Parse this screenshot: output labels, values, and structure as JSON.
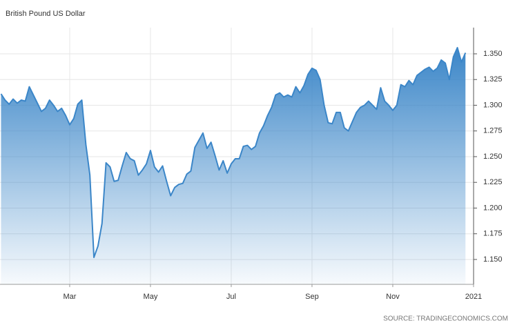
{
  "chart_data": {
    "type": "area",
    "title": "British Pound US Dollar",
    "source": "SOURCE: TRADINGECONOMICS.COM",
    "categories": [
      null,
      null,
      null,
      null,
      null,
      null,
      null,
      null,
      null,
      null,
      null,
      null,
      null,
      null,
      null,
      null,
      null,
      "Mar",
      null,
      null,
      null,
      null,
      null,
      null,
      null,
      null,
      null,
      null,
      null,
      null,
      null,
      null,
      null,
      null,
      null,
      null,
      null,
      "May",
      null,
      null,
      null,
      null,
      null,
      null,
      null,
      null,
      null,
      null,
      null,
      null,
      null,
      null,
      null,
      null,
      null,
      null,
      null,
      "Jul",
      null,
      null,
      null,
      null,
      null,
      null,
      null,
      null,
      null,
      null,
      null,
      null,
      null,
      null,
      null,
      null,
      null,
      null,
      null,
      "Sep",
      null,
      null,
      null,
      null,
      null,
      null,
      null,
      null,
      null,
      null,
      null,
      null,
      null,
      null,
      null,
      null,
      null,
      null,
      null,
      "Nov",
      null,
      null,
      null,
      null,
      null,
      null,
      null,
      null,
      null,
      null,
      null,
      null,
      null,
      null,
      null,
      null,
      null,
      null,
      null,
      "2021"
    ],
    "values": [
      1.311,
      1.305,
      1.301,
      1.306,
      1.302,
      1.305,
      1.304,
      1.318,
      1.31,
      1.302,
      1.294,
      1.297,
      1.305,
      1.3,
      1.294,
      1.297,
      1.29,
      1.281,
      1.287,
      1.301,
      1.305,
      1.262,
      1.232,
      1.152,
      1.163,
      1.185,
      1.244,
      1.24,
      1.226,
      1.227,
      1.241,
      1.254,
      1.248,
      1.246,
      1.232,
      1.237,
      1.243,
      1.256,
      1.24,
      1.235,
      1.241,
      1.226,
      1.212,
      1.22,
      1.223,
      1.224,
      1.233,
      1.236,
      1.259,
      1.266,
      1.273,
      1.258,
      1.264,
      1.251,
      1.237,
      1.246,
      1.234,
      1.243,
      1.248,
      1.248,
      1.26,
      1.261,
      1.257,
      1.26,
      1.273,
      1.28,
      1.29,
      1.298,
      1.31,
      1.312,
      1.308,
      1.31,
      1.308,
      1.318,
      1.312,
      1.319,
      1.33,
      1.336,
      1.334,
      1.325,
      1.3,
      1.283,
      1.282,
      1.293,
      1.293,
      1.278,
      1.275,
      1.284,
      1.293,
      1.298,
      1.3,
      1.304,
      1.3,
      1.296,
      1.317,
      1.304,
      1.3,
      1.295,
      1.3,
      1.32,
      1.318,
      1.324,
      1.32,
      1.329,
      1.332,
      1.335,
      1.337,
      1.333,
      1.336,
      1.344,
      1.341,
      1.325,
      1.347,
      1.356,
      1.342,
      1.351,
      null,
      null
    ],
    "color": "#3b86c8",
    "ylim": [
      1.1258,
      1.3755
    ],
    "yticks": [
      {
        "value": 1.15,
        "label": "1.150"
      },
      1.175,
      {
        "value": 1.2,
        "label": "1.200"
      },
      1.225,
      {
        "value": 1.25,
        "label": "1.250"
      },
      1.275,
      {
        "value": 1.3,
        "label": "1.300"
      },
      1.325,
      {
        "value": 1.35,
        "label": "1.350"
      }
    ],
    "grid": true
  }
}
